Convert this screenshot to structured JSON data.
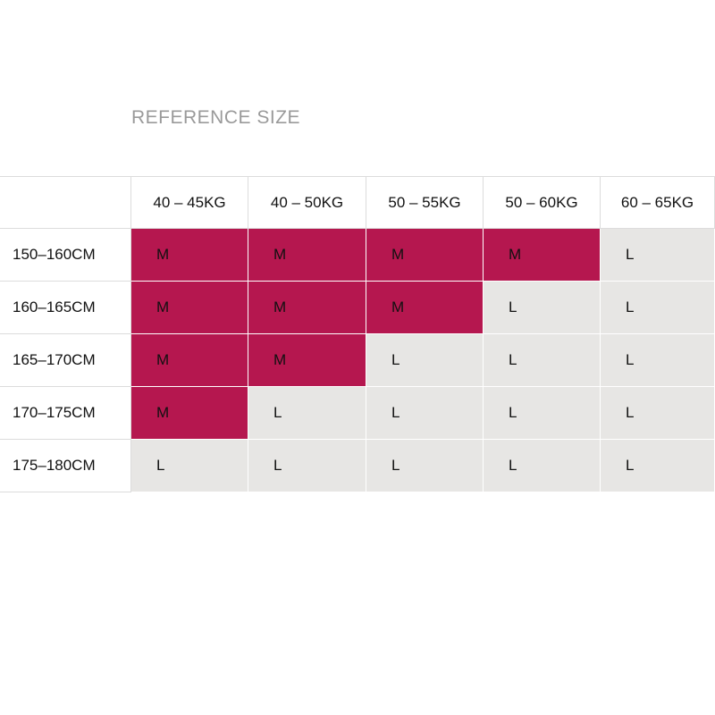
{
  "title": "REFERENCE SIZE",
  "table": {
    "header": [
      "40 – 45KG",
      "40 – 50KG",
      "50 – 55KG",
      "50 – 60KG",
      "60 – 65KG"
    ],
    "rows": [
      {
        "label": "150–160CM",
        "cells": [
          {
            "text": "M",
            "color": "#b5174f"
          },
          {
            "text": "M",
            "color": "#b5174f"
          },
          {
            "text": "M",
            "color": "#b5174f"
          },
          {
            "text": "M",
            "color": "#b5174f"
          },
          {
            "text": "L",
            "color": "#e7e6e4"
          }
        ]
      },
      {
        "label": "160–165CM",
        "cells": [
          {
            "text": "M",
            "color": "#b5174f"
          },
          {
            "text": "M",
            "color": "#b5174f"
          },
          {
            "text": "M",
            "color": "#b5174f"
          },
          {
            "text": "L",
            "color": "#e7e6e4"
          },
          {
            "text": "L",
            "color": "#e7e6e4"
          }
        ]
      },
      {
        "label": "165–170CM",
        "cells": [
          {
            "text": "M",
            "color": "#b5174f"
          },
          {
            "text": "M",
            "color": "#b5174f"
          },
          {
            "text": "L",
            "color": "#e7e6e4"
          },
          {
            "text": "L",
            "color": "#e7e6e4"
          },
          {
            "text": "L",
            "color": "#e7e6e4"
          }
        ]
      },
      {
        "label": "170–175CM",
        "cells": [
          {
            "text": "M",
            "color": "#b5174f"
          },
          {
            "text": "L",
            "color": "#e7e6e4"
          },
          {
            "text": "L",
            "color": "#e7e6e4"
          },
          {
            "text": "L",
            "color": "#e7e6e4"
          },
          {
            "text": "L",
            "color": "#e7e6e4"
          }
        ]
      },
      {
        "label": "175–180CM",
        "cells": [
          {
            "text": "L",
            "color": "#e7e6e4"
          },
          {
            "text": "L",
            "color": "#e7e6e4"
          },
          {
            "text": "L",
            "color": "#e7e6e4"
          },
          {
            "text": "L",
            "color": "#e7e6e4"
          },
          {
            "text": "L",
            "color": "#e7e6e4"
          }
        ]
      }
    ]
  }
}
